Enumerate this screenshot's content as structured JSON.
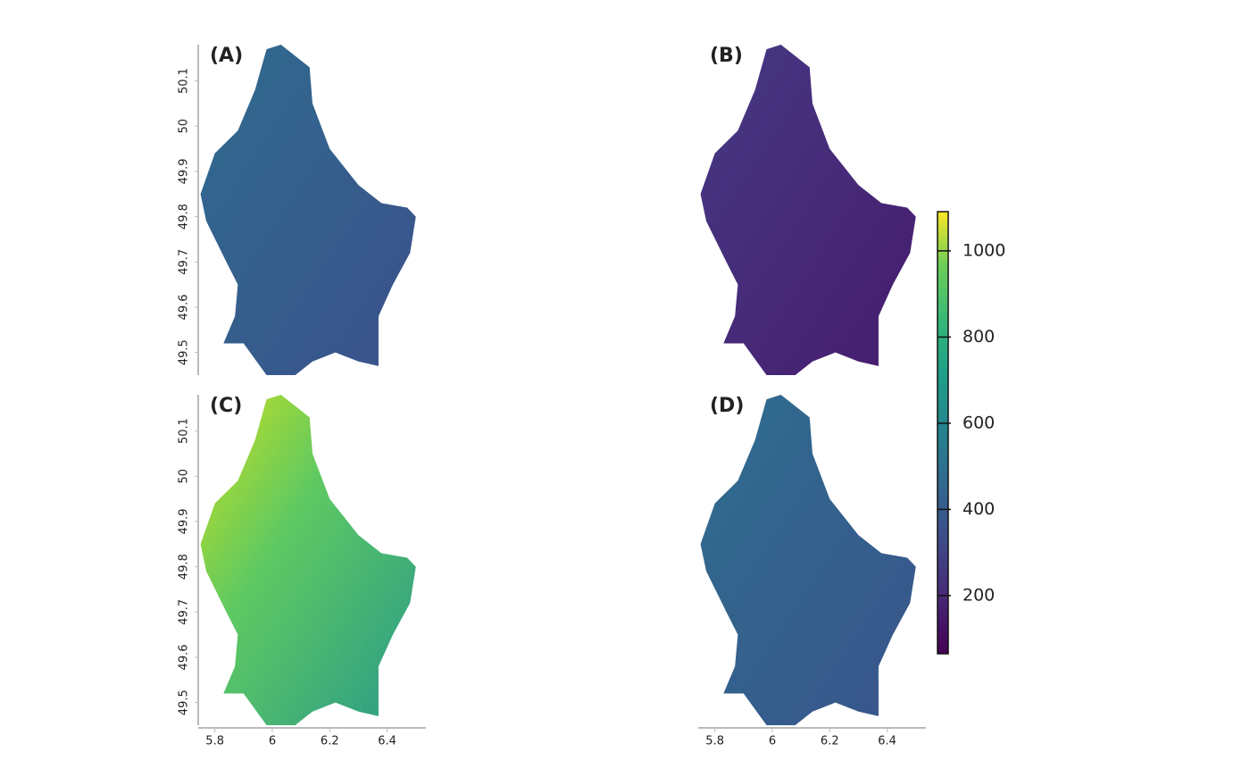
{
  "panels": [
    {
      "label": "(A)"
    },
    {
      "label": "(B)"
    },
    {
      "label": "(C)"
    },
    {
      "label": "(D)"
    }
  ],
  "x_axis": {
    "xlim": [
      5.742,
      6.535
    ],
    "xticks": [
      5.8,
      6,
      6.2,
      6.4
    ]
  },
  "y_axis": {
    "ylim": [
      49.45,
      50.18
    ],
    "yticks": [
      49.5,
      49.6,
      49.7,
      49.8,
      49.9,
      50,
      50.1
    ]
  },
  "colorbar": {
    "lim": [
      65,
      1091
    ],
    "ticks": [
      200,
      400,
      600,
      800,
      1000
    ]
  }
}
